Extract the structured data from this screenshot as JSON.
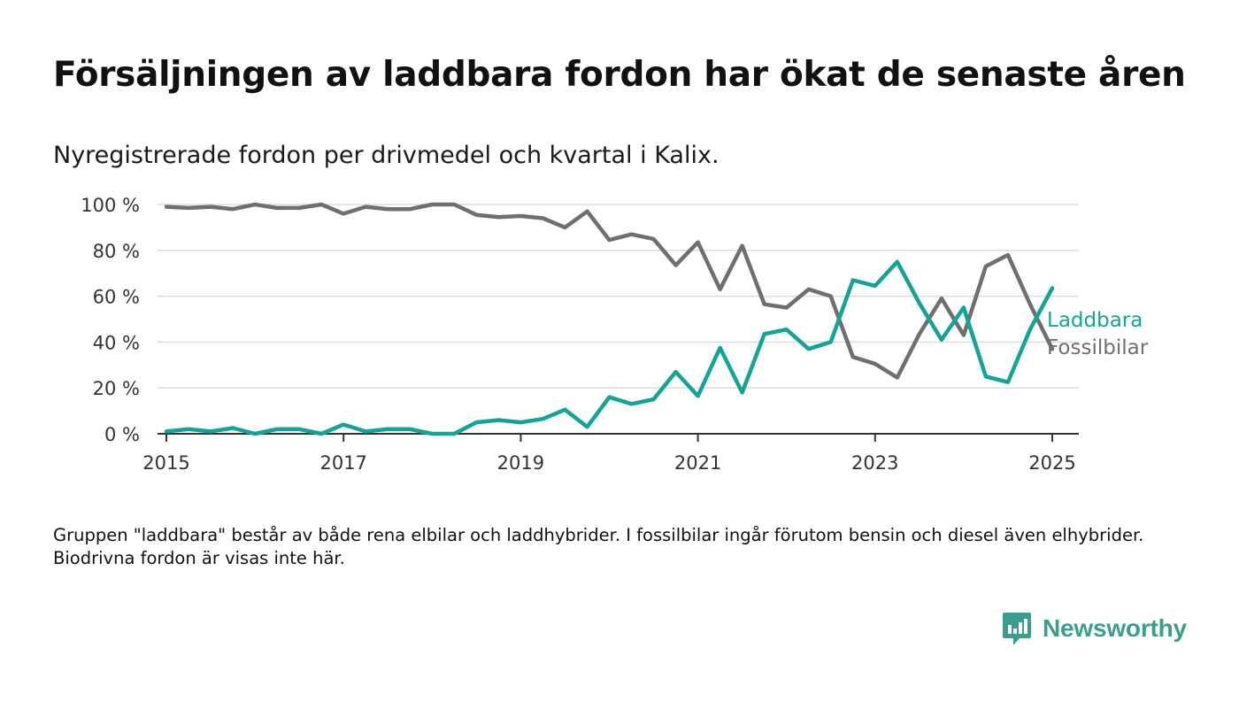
{
  "header": {
    "title": "Försäljningen av laddbara fordon har ökat de senaste åren",
    "subtitle": "Nyregistrerade fordon per drivmedel och kvartal i Kalix."
  },
  "footnote": "Gruppen \"laddbara\" består av både rena elbilar och laddhybrider. I fossilbilar ingår förutom bensin och diesel även elhybrider. Biodrivna fordon är visas inte här.",
  "brand": {
    "name": "Newsworthy",
    "color": "#3a9e8c"
  },
  "chart_data": {
    "type": "line",
    "title": "Försäljningen av laddbara fordon har ökat de senaste åren",
    "subtitle": "Nyregistrerade fordon per drivmedel och kvartal i Kalix.",
    "xlabel": "",
    "ylabel": "",
    "x_range": [
      2014.9,
      2025.3
    ],
    "ylim": [
      0,
      100
    ],
    "y_ticks": [
      0,
      20,
      40,
      60,
      80,
      100
    ],
    "y_tick_labels": [
      "0 %",
      "20 %",
      "40 %",
      "60 %",
      "80 %",
      "100 %"
    ],
    "x_ticks": [
      2015,
      2017,
      2019,
      2021,
      2023,
      2025
    ],
    "x_tick_labels": [
      "2015",
      "2017",
      "2019",
      "2021",
      "2023",
      "2025"
    ],
    "grid": true,
    "legend": "direct labels at line ends (right)",
    "x": [
      2015.0,
      2015.25,
      2015.5,
      2015.75,
      2016.0,
      2016.25,
      2016.5,
      2016.75,
      2017.0,
      2017.25,
      2017.5,
      2017.75,
      2018.0,
      2018.25,
      2018.5,
      2018.75,
      2019.0,
      2019.25,
      2019.5,
      2019.75,
      2020.0,
      2020.25,
      2020.5,
      2020.75,
      2021.0,
      2021.25,
      2021.5,
      2021.75,
      2022.0,
      2022.25,
      2022.5,
      2022.75,
      2023.0,
      2023.25,
      2023.5,
      2023.75,
      2024.0,
      2024.25,
      2024.5,
      2024.75,
      2025.0
    ],
    "series": [
      {
        "name": "Laddbara",
        "color": "#12a595",
        "values": [
          1,
          2,
          1,
          2.5,
          0,
          2,
          2,
          0,
          4,
          1,
          2,
          2,
          0,
          0,
          5,
          6,
          5,
          6.5,
          10.5,
          3,
          16,
          13,
          15,
          27,
          16.5,
          37.5,
          18,
          43.5,
          45.5,
          37,
          40,
          67,
          64.5,
          75,
          57,
          41,
          55,
          25,
          22.5,
          45.5,
          63.5
        ]
      },
      {
        "name": "Fossilbilar",
        "color": "#6f6f71",
        "values": [
          99,
          98.5,
          99,
          98,
          100,
          98.5,
          98.5,
          100,
          96,
          99,
          98,
          98,
          100,
          100,
          95.5,
          94.5,
          95,
          94,
          90,
          97,
          84.5,
          87,
          85,
          73.5,
          83.5,
          63,
          82,
          56.5,
          55,
          63,
          60,
          33.5,
          30.5,
          24.5,
          43.5,
          59,
          43,
          73,
          78,
          56.5,
          37
        ]
      }
    ]
  }
}
